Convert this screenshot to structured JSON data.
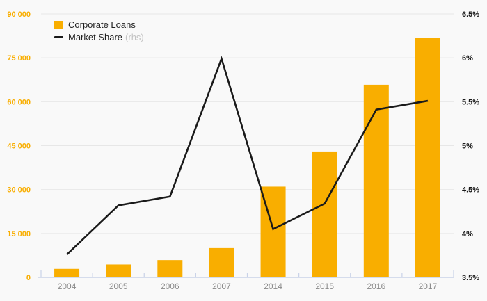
{
  "chart_data": {
    "type": "bar",
    "subtype": "combo-bar-line-dual-axis",
    "categories": [
      "2004",
      "2005",
      "2006",
      "2007",
      "2014",
      "2015",
      "2016",
      "2017"
    ],
    "series": [
      {
        "name": "Corporate Loans",
        "type": "bar",
        "axis": "left",
        "color": "#f9ae00",
        "values": [
          2900,
          4400,
          5900,
          10000,
          31000,
          43000,
          65800,
          81800
        ]
      },
      {
        "name": "Market Share",
        "type": "line",
        "axis": "right",
        "color": "#1a1a1a",
        "values": [
          3.76,
          4.32,
          4.42,
          5.99,
          4.05,
          4.34,
          5.41,
          5.51
        ]
      }
    ],
    "left_axis": {
      "min": 0,
      "max": 90000,
      "step": 15000,
      "tick_labels": [
        "0",
        "15 000",
        "30 000",
        "45 000",
        "60 000",
        "75 000",
        "90 000"
      ],
      "label_color": "#f9ae00"
    },
    "right_axis": {
      "min": 3.5,
      "max": 6.5,
      "step": 0.5,
      "tick_labels": [
        "3.5%",
        "4%",
        "4.5%",
        "5%",
        "5.5%",
        "6%",
        "6.5%"
      ],
      "label_color": "#1a1a1a"
    },
    "x_axis": {
      "label_color": "#8a8a8a",
      "line_color": "#c9d2e8"
    },
    "grid": true,
    "grid_color": "#e7e7e7",
    "background_color": "#f9f9f9",
    "legend_position": "top-left-inside",
    "legend": [
      {
        "label": "Corporate Loans",
        "suffix": "",
        "swatch": "square",
        "color": "#f9ae00"
      },
      {
        "label": "Market Share",
        "suffix": "(rhs)",
        "swatch": "line",
        "color": "#1a1a1a"
      }
    ],
    "title": "",
    "xlabel": "",
    "ylabel": ""
  }
}
